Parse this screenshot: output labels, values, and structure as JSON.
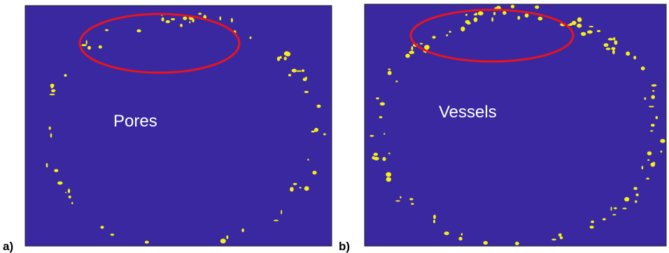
{
  "panels": [
    {
      "label": "a)",
      "annotation": "Pores"
    },
    {
      "label": "b)",
      "annotation": "Vessels"
    }
  ]
}
